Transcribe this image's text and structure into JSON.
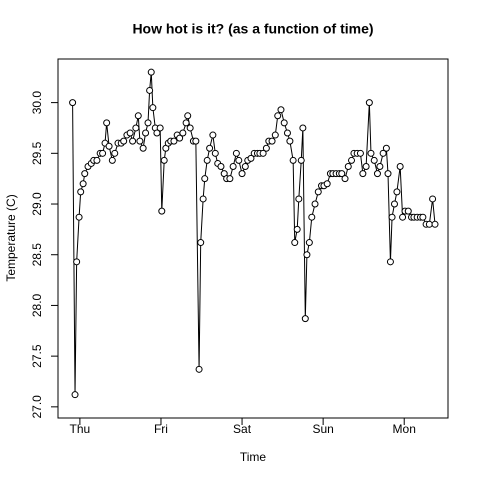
{
  "chart_data": {
    "type": "line",
    "title": "How hot is it? (as a function of time)",
    "x_label": "Time",
    "y_label": "Temperature (C)",
    "x": [
      -0.09,
      -0.06,
      -0.04,
      -0.01,
      0.01,
      0.04,
      0.06,
      0.1,
      0.14,
      0.17,
      0.21,
      0.25,
      0.28,
      0.31,
      0.33,
      0.36,
      0.4,
      0.43,
      0.47,
      0.51,
      0.54,
      0.58,
      0.62,
      0.65,
      0.69,
      0.72,
      0.74,
      0.78,
      0.81,
      0.84,
      0.86,
      0.88,
      0.9,
      0.93,
      0.95,
      0.99,
      1.01,
      1.04,
      1.06,
      1.09,
      1.12,
      1.16,
      1.2,
      1.23,
      1.27,
      1.31,
      1.33,
      1.36,
      1.4,
      1.43,
      1.47,
      1.49,
      1.52,
      1.54,
      1.57,
      1.6,
      1.64,
      1.67,
      1.7,
      1.74,
      1.78,
      1.81,
      1.85,
      1.89,
      1.93,
      1.96,
      2.0,
      2.04,
      2.07,
      2.11,
      2.15,
      2.19,
      2.22,
      2.26,
      2.3,
      2.33,
      2.37,
      2.41,
      2.44,
      2.48,
      2.52,
      2.56,
      2.59,
      2.63,
      2.65,
      2.68,
      2.7,
      2.73,
      2.75,
      2.78,
      2.8,
      2.83,
      2.86,
      2.9,
      2.94,
      2.98,
      3.01,
      3.05,
      3.09,
      3.12,
      3.16,
      3.2,
      3.23,
      3.27,
      3.31,
      3.35,
      3.38,
      3.42,
      3.46,
      3.49,
      3.53,
      3.57,
      3.59,
      3.63,
      3.67,
      3.7,
      3.74,
      3.78,
      3.8,
      3.83,
      3.85,
      3.88,
      3.91,
      3.95,
      3.98,
      4.01,
      4.05,
      4.09,
      4.12,
      4.16,
      4.2,
      4.23,
      4.27,
      4.31,
      4.35,
      4.38
    ],
    "values": [
      30.0,
      27.12,
      28.43,
      28.87,
      29.12,
      29.2,
      29.3,
      29.37,
      29.4,
      29.43,
      29.43,
      29.5,
      29.5,
      29.6,
      29.8,
      29.57,
      29.43,
      29.5,
      29.6,
      29.6,
      29.62,
      29.68,
      29.7,
      29.62,
      29.75,
      29.87,
      29.62,
      29.55,
      29.7,
      29.8,
      30.12,
      30.3,
      29.95,
      29.75,
      29.7,
      29.75,
      28.93,
      29.43,
      29.55,
      29.6,
      29.62,
      29.62,
      29.68,
      29.65,
      29.7,
      29.8,
      29.87,
      29.75,
      29.62,
      29.62,
      27.37,
      28.62,
      29.05,
      29.25,
      29.43,
      29.55,
      29.68,
      29.5,
      29.4,
      29.37,
      29.3,
      29.25,
      29.25,
      29.37,
      29.5,
      29.43,
      29.3,
      29.37,
      29.43,
      29.45,
      29.5,
      29.5,
      29.5,
      29.5,
      29.55,
      29.62,
      29.62,
      29.68,
      29.87,
      29.93,
      29.8,
      29.7,
      29.62,
      29.43,
      28.62,
      28.75,
      29.05,
      29.43,
      29.75,
      27.87,
      28.5,
      28.62,
      28.87,
      29.0,
      29.12,
      29.18,
      29.18,
      29.2,
      29.3,
      29.3,
      29.3,
      29.3,
      29.3,
      29.25,
      29.37,
      29.43,
      29.5,
      29.5,
      29.5,
      29.3,
      29.37,
      30.0,
      29.5,
      29.43,
      29.3,
      29.37,
      29.5,
      29.55,
      29.3,
      28.43,
      28.87,
      29.0,
      29.12,
      29.37,
      28.87,
      28.93,
      28.93,
      28.87,
      28.87,
      28.87,
      28.87,
      28.87,
      28.8,
      28.8,
      29.05,
      28.8
    ],
    "color": "#000000",
    "xlim": [
      -0.27,
      4.54
    ],
    "xticks": [
      {
        "value": 0,
        "label": "Thu"
      },
      {
        "value": 1,
        "label": "Fri"
      },
      {
        "value": 2,
        "label": "Sat"
      },
      {
        "value": 3,
        "label": "Sun"
      },
      {
        "value": 4,
        "label": "Mon"
      }
    ],
    "ylim": [
      26.89,
      30.43
    ],
    "yticks": [
      {
        "value": 27,
        "label": "27.0"
      },
      27.5,
      {
        "value": 28,
        "label": "28.0"
      },
      28.5,
      {
        "value": 29,
        "label": "29.0"
      },
      29.5,
      {
        "value": 30,
        "label": "30.0"
      }
    ],
    "grid": false
  }
}
